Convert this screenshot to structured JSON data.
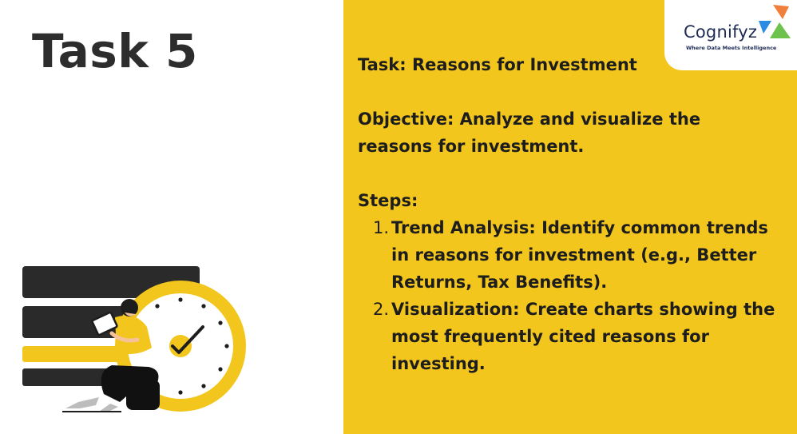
{
  "slide": {
    "title": "Task 5",
    "brand": {
      "name": "Cognifyz",
      "tagline": "Where Data Meets Intelligence",
      "colors": {
        "orange": "#f07f3c",
        "blue": "#2a8be3",
        "green": "#6cc24a",
        "navy": "#1e2b57"
      }
    },
    "task_line": "Task: Reasons for Investment",
    "objective": "Objective: Analyze and visualize the reasons for investment.",
    "steps_heading": "Steps:",
    "steps": [
      {
        "number": "1.",
        "text": "Trend Analysis: Identify common trends in reasons for investment (e.g., Better Returns, Tax Benefits)."
      },
      {
        "number": "2.",
        "text": "Visualization: Create charts showing the most frequently cited reasons for investing."
      }
    ],
    "colors": {
      "panel": "#f2c61c",
      "title": "#2d2d2d",
      "text": "#1d1d1d"
    },
    "illustration": "person-with-tablet-and-clock-illustration"
  }
}
